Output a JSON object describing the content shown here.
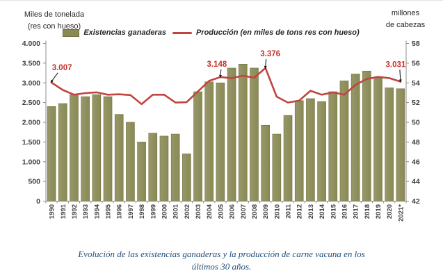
{
  "header": {
    "left_axis_title_line1": "Miles de tonelada",
    "left_axis_title_line2": "(res con hueso)",
    "right_axis_title_line1": "millones",
    "right_axis_title_line2": "de cabezas"
  },
  "legend": {
    "bars_label": "Existencias ganaderas",
    "line_label": "Producción (en miles de tons res con hueso)"
  },
  "colors": {
    "bar_fill": "#8a8a55",
    "bar_fill_light": "#97976a",
    "bar_stroke": "#70703e",
    "line_color": "#c0453e",
    "annotation_color": "#c9302a",
    "axis_color": "#8c8c8c",
    "tick_text_color": "#3f3f3f",
    "caption_color": "#1f4e7a",
    "arrow_color": "#1a1a1a"
  },
  "chart_data": {
    "type": "combo-bar-line",
    "title": "",
    "categories": [
      "1990",
      "1991",
      "1992",
      "1993",
      "1994",
      "1995",
      "1996",
      "1997",
      "1998",
      "1999",
      "2000",
      "2001",
      "2002",
      "2003",
      "2004",
      "2005",
      "2006",
      "2007",
      "2008",
      "2009",
      "2010",
      "2011",
      "2012",
      "2013",
      "2014",
      "2015",
      "2016",
      "2017",
      "2018",
      "2019",
      "2020",
      "2021*"
    ],
    "series": [
      {
        "name": "Existencias ganaderas",
        "type": "bar",
        "axis": "right",
        "unit": "millones de cabezas",
        "values": [
          51.6,
          51.9,
          52.8,
          52.6,
          52.8,
          52.6,
          50.8,
          50.0,
          48.0,
          48.9,
          48.6,
          48.8,
          46.8,
          53.1,
          54.1,
          54.0,
          55.5,
          55.9,
          55.5,
          49.7,
          48.8,
          50.7,
          52.2,
          52.4,
          52.1,
          53.1,
          54.2,
          54.9,
          55.2,
          54.5,
          53.5,
          53.4
        ]
      },
      {
        "name": "Producción (en miles de tons res con hueso)",
        "type": "line",
        "axis": "left",
        "unit": "miles de toneladas",
        "values": [
          3007,
          2820,
          2700,
          2740,
          2760,
          2700,
          2710,
          2690,
          2460,
          2700,
          2700,
          2500,
          2510,
          2780,
          3050,
          3148,
          3120,
          3180,
          3130,
          3376,
          2650,
          2500,
          2550,
          2800,
          2700,
          2760,
          2700,
          2950,
          3100,
          3150,
          3120,
          3031
        ]
      }
    ],
    "left_axis": {
      "min": 0,
      "max": 4000,
      "step": 500,
      "tick_labels": [
        "4.000",
        "3.500",
        "3.000",
        "2.500",
        "2.000",
        "1.500",
        "1.000",
        "500",
        "0"
      ]
    },
    "right_axis": {
      "min": 42,
      "max": 58,
      "step": 2,
      "tick_labels": [
        "58",
        "56",
        "54",
        "52",
        "50",
        "48",
        "46",
        "44",
        "42"
      ]
    },
    "grid": false,
    "legend_position": "top",
    "annotations": [
      {
        "category": "1990",
        "value": 3007,
        "label": "3.007"
      },
      {
        "category": "2005",
        "value": 3148,
        "label": "3.148"
      },
      {
        "category": "2009",
        "value": 3376,
        "label": "3.376"
      },
      {
        "category": "2021*",
        "value": 3031,
        "label": "3.031"
      }
    ]
  },
  "caption": "Evolución de las existencias ganaderas y la producción de carne vacuna en los últimos 30 años."
}
